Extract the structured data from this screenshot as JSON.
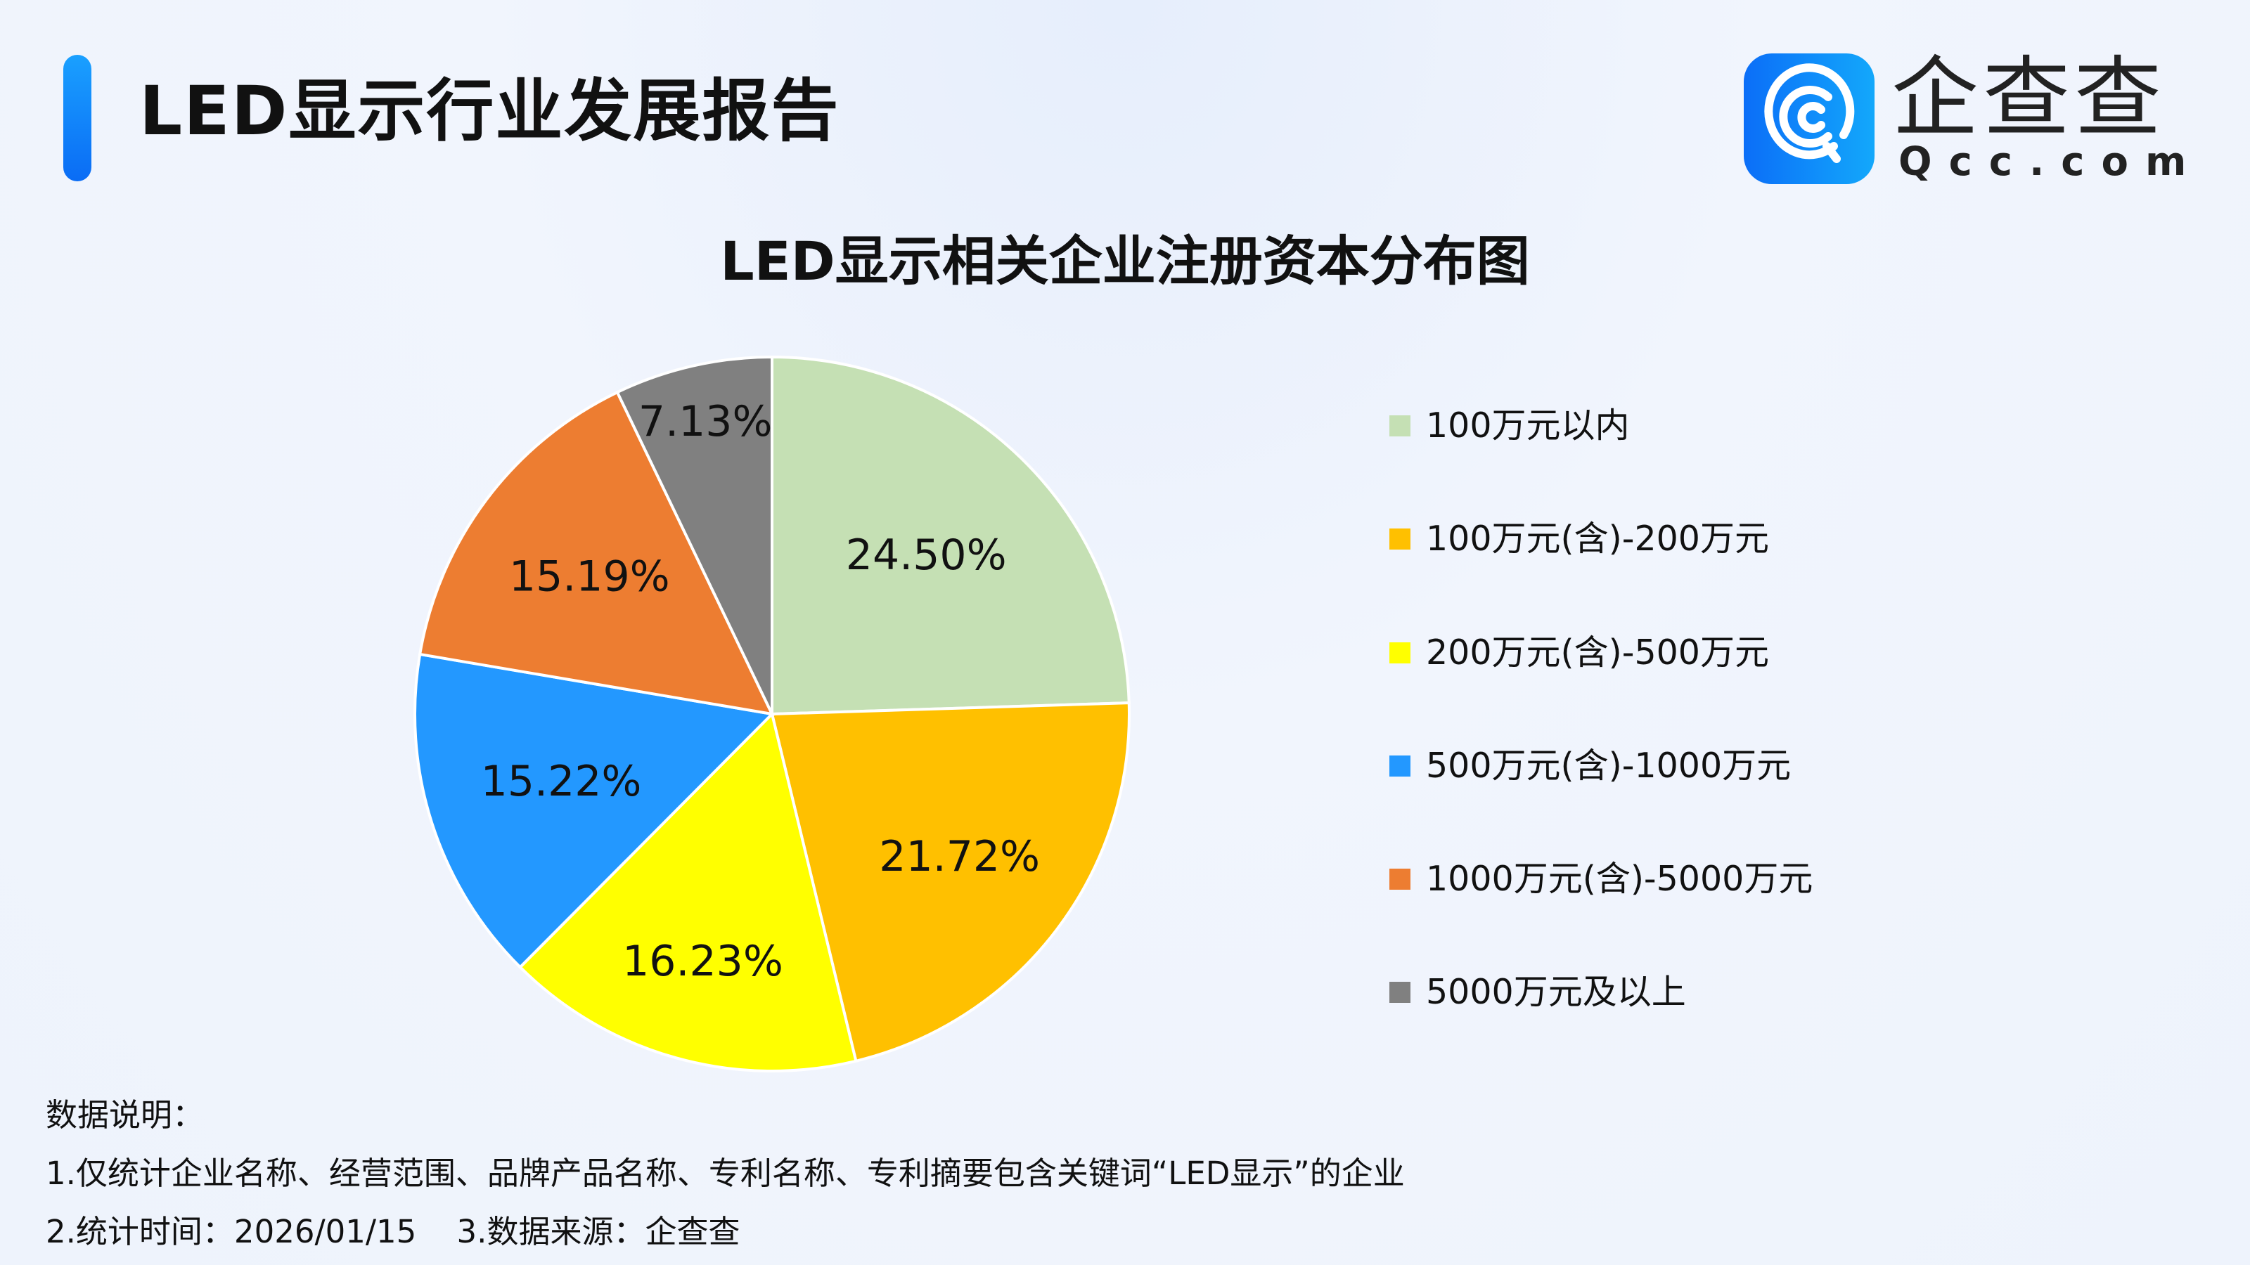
{
  "header": {
    "title": "LED显示行业发展报告",
    "logo_text": "企查查",
    "logo_sub": "Qcc.com"
  },
  "chart_data": {
    "type": "pie",
    "title": "LED显示相关企业注册资本分布图",
    "categories": [
      "100万元以内",
      "100万元(含)-200万元",
      "200万元(含)-500万元",
      "500万元(含)-1000万元",
      "1000万元(含)-5000万元",
      "5000万元及以上"
    ],
    "values": [
      24.5,
      21.72,
      16.23,
      15.22,
      15.19,
      7.13
    ],
    "labels": [
      "24.50%",
      "21.72%",
      "16.23%",
      "15.22%",
      "15.19%",
      "7.13%"
    ],
    "colors": [
      "#C5E0B4",
      "#FFC000",
      "#FFFF00",
      "#2398FF",
      "#ED7D31",
      "#808080"
    ],
    "start": "top",
    "direction": "clockwise",
    "legend_position": "right"
  },
  "notes": {
    "heading": "数据说明：",
    "line1": "1.仅统计企业名称、经营范围、品牌产品名称、专利名称、专利摘要包含关键词“LED显示”的企业",
    "line2": "2.统计时间：2026/01/15    3.数据来源：企查查"
  }
}
